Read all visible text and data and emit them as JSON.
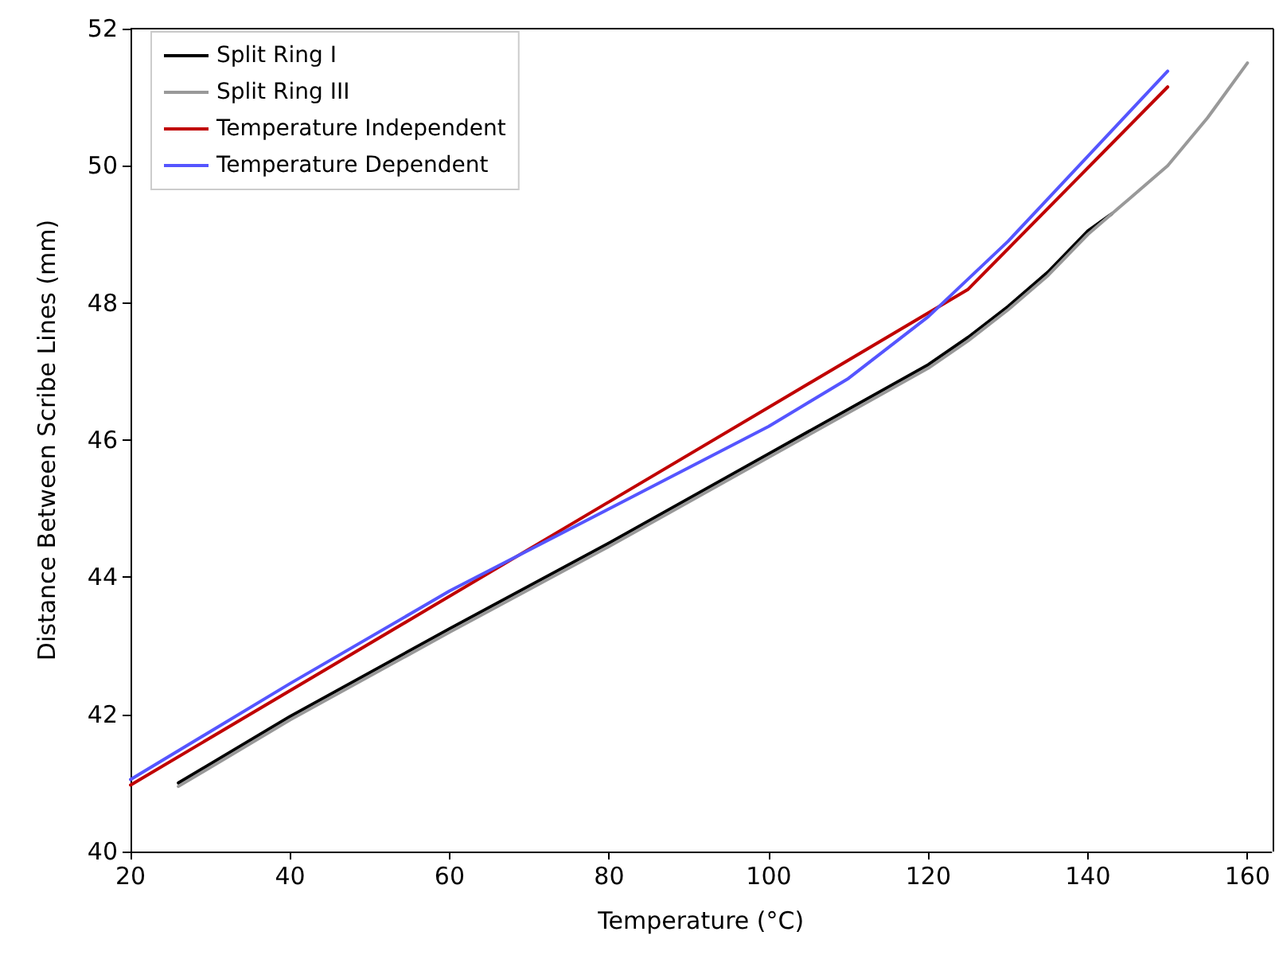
{
  "chart_data": {
    "type": "line",
    "xlabel": "Temperature (°C)",
    "ylabel": "Distance Between Scribe Lines (mm)",
    "xlim": [
      20,
      163
    ],
    "xticks": [
      20,
      40,
      60,
      80,
      100,
      120,
      140,
      160
    ],
    "ylim": [
      40,
      52
    ],
    "yticks": [
      40,
      42,
      44,
      46,
      48,
      50,
      52
    ],
    "grid": false,
    "legend": "top left",
    "marker": "none",
    "line_style": "solid",
    "series": [
      {
        "name": "Split Ring I",
        "color": "#000000",
        "x": [
          26,
          40,
          60,
          80,
          100,
          110,
          120,
          125,
          130,
          135,
          140,
          143
        ],
        "values": [
          41.0,
          41.97,
          43.25,
          44.5,
          45.8,
          46.45,
          47.1,
          47.5,
          47.95,
          48.45,
          49.05,
          49.3
        ]
      },
      {
        "name": "Split Ring III",
        "color": "#999999",
        "x": [
          26,
          40,
          60,
          80,
          100,
          110,
          120,
          125,
          130,
          135,
          140,
          145,
          150,
          155,
          160
        ],
        "values": [
          40.95,
          41.92,
          43.2,
          44.45,
          45.75,
          46.4,
          47.05,
          47.45,
          47.9,
          48.4,
          49.0,
          49.5,
          50.0,
          50.7,
          51.5
        ]
      },
      {
        "name": "Temperature Independent",
        "color": "#c00000",
        "x": [
          20,
          125,
          150
        ],
        "values": [
          40.97,
          48.2,
          51.15
        ]
      },
      {
        "name": "Temperature Dependent",
        "color": "#5555ff",
        "x": [
          20,
          40,
          60,
          80,
          100,
          110,
          120,
          130,
          150
        ],
        "values": [
          41.05,
          42.45,
          43.8,
          45.0,
          46.2,
          46.9,
          47.8,
          48.9,
          51.38
        ]
      }
    ]
  }
}
